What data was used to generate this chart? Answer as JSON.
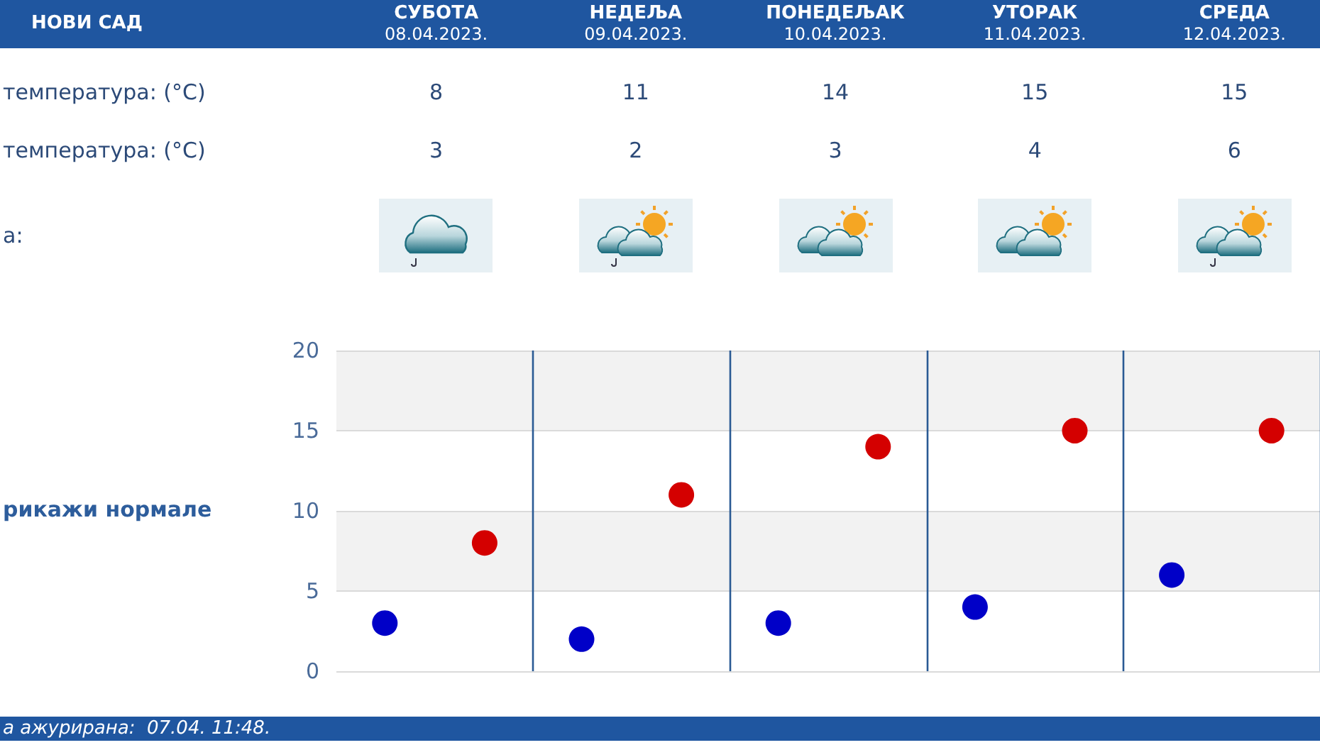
{
  "chart_data": {
    "type": "scatter",
    "title": "НОВИ САД",
    "categories": [
      null,
      null,
      null,
      null,
      null
    ],
    "series": [
      {
        "color": "#d40000",
        "values": [
          8,
          11,
          14,
          15,
          15
        ]
      },
      {
        "color": "#0000c8",
        "values": [
          3,
          2,
          3,
          4,
          6
        ]
      }
    ],
    "ylim": [
      0,
      20
    ],
    "yticks": [
      0,
      5,
      10,
      15,
      20
    ],
    "grid": true,
    "marker": "circle",
    "data_labels": true,
    "annotations": [
      "СУБОТА\n08.04.2023.",
      "НЕДЕЉА\n09.04.2023.",
      "ПОНЕДЕЉАК\n10.04.2023.",
      "УТОРАК\n11.04.2023.",
      "СРЕДА\n12.04.2023.",
      "температура: (°C)",
      "температура: (°C)",
      "а:",
      "рикажи нормале",
      "а ажурирана:  07.04. 11:48."
    ]
  }
}
